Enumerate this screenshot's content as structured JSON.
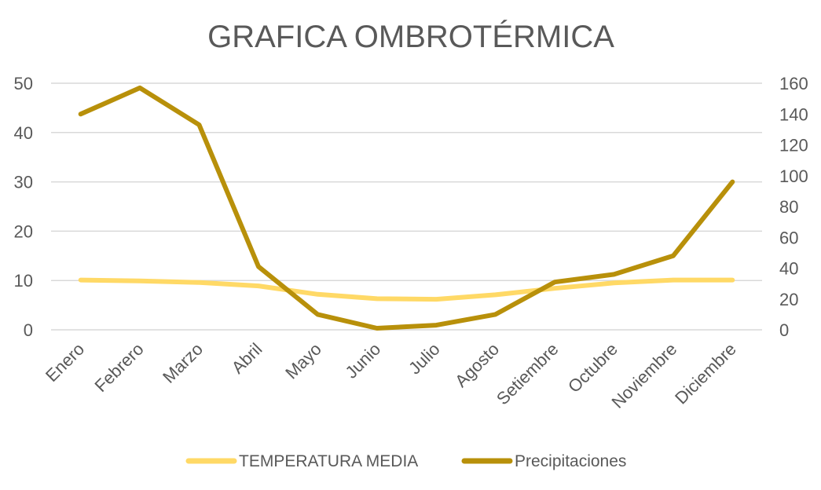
{
  "chart_data": {
    "type": "line",
    "title": "GRAFICA OMBROTÉRMICA",
    "categories": [
      "Enero",
      "Febrero",
      "Marzo",
      "Abril",
      "Mayo",
      "Junio",
      "Julio",
      "Agosto",
      "Setiembre",
      "Octubre",
      "Noviembre",
      "Diciembre"
    ],
    "series": [
      {
        "name": "TEMPERATURA MEDIA",
        "axis": "left",
        "color": "#ffd966",
        "values": [
          10.1,
          9.9,
          9.6,
          8.9,
          7.2,
          6.3,
          6.2,
          7.1,
          8.4,
          9.5,
          10.1,
          10.1
        ]
      },
      {
        "name": "Precipitaciones",
        "axis": "right",
        "color": "#b8900a",
        "values": [
          140,
          157,
          133,
          41,
          10,
          1,
          3,
          10,
          31,
          36,
          48,
          96
        ]
      }
    ],
    "y_left": {
      "ylim": [
        0,
        50
      ],
      "ticks": [
        "0",
        "10",
        "20",
        "30",
        "40",
        "50"
      ]
    },
    "y_right": {
      "ylim": [
        0,
        160
      ],
      "ticks": [
        "0",
        "20",
        "40",
        "60",
        "80",
        "100",
        "120",
        "140",
        "160"
      ]
    },
    "xlabel": "",
    "ylabel": "",
    "grid": true,
    "legend_position": "bottom"
  }
}
